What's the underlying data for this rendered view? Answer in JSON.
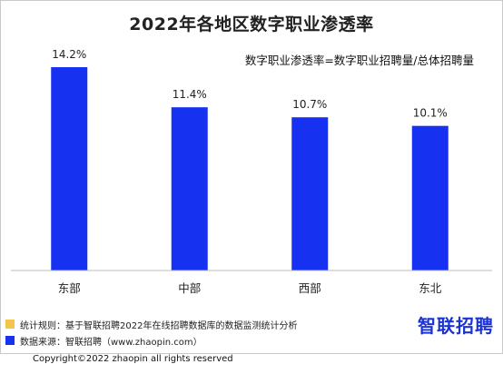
{
  "title": "2022年各地区数字职业渗透率",
  "formula": "数字职业渗透率=数字职业招聘量/总体招聘量",
  "chart_data": {
    "type": "bar",
    "title": "2022年各地区数字职业渗透率",
    "categories": [
      "东部",
      "中部",
      "西部",
      "东北"
    ],
    "values": [
      14.2,
      11.4,
      10.7,
      10.1
    ],
    "value_labels": [
      "14.2%",
      "11.4%",
      "10.7%",
      "10.1%"
    ],
    "unit": "%",
    "ylim": [
      0,
      16
    ],
    "grid": false,
    "bar_color": "#1632f0"
  },
  "notes": [
    {
      "text": "统计规则：基于智联招聘2022年在线招聘数据库的数据监测统计分析",
      "color": "#f3c64a"
    },
    {
      "text": "数据来源：智联招聘（www.zhaopin.com）",
      "color": "#1632f0"
    }
  ],
  "logo_text": "智联招聘",
  "copyright": "Copyright©2022 zhaopin all rights reserved"
}
